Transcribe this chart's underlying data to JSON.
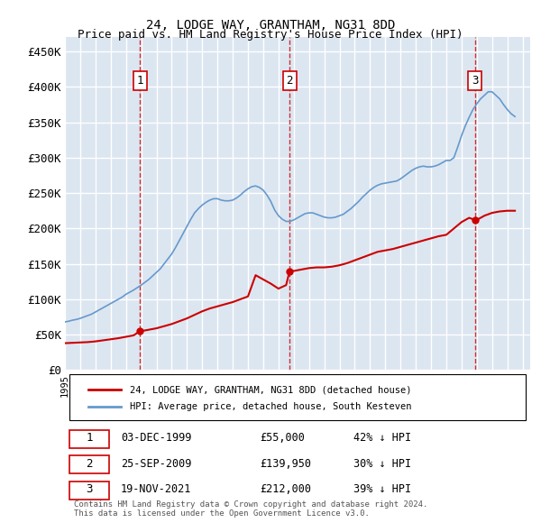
{
  "title": "24, LODGE WAY, GRANTHAM, NG31 8DD",
  "subtitle": "Price paid vs. HM Land Registry's House Price Index (HPI)",
  "ylabel_ticks": [
    "£0",
    "£50K",
    "£100K",
    "£150K",
    "£200K",
    "£250K",
    "£300K",
    "£350K",
    "£400K",
    "£450K"
  ],
  "ytick_values": [
    0,
    50000,
    100000,
    150000,
    200000,
    250000,
    300000,
    350000,
    400000,
    450000
  ],
  "ylim": [
    0,
    470000
  ],
  "xlim_start": 1995.0,
  "xlim_end": 2025.5,
  "background_color": "#dce6f1",
  "plot_bg_color": "#dce6f1",
  "grid_color": "#ffffff",
  "hpi_color": "#6699cc",
  "price_color": "#cc0000",
  "vline_color": "#cc0000",
  "marker_color": "#cc0000",
  "sale_dates": [
    1999.92,
    2009.73,
    2021.88
  ],
  "sale_prices": [
    55000,
    139950,
    212000
  ],
  "sale_labels": [
    "1",
    "2",
    "3"
  ],
  "legend_label_red": "24, LODGE WAY, GRANTHAM, NG31 8DD (detached house)",
  "legend_label_blue": "HPI: Average price, detached house, South Kesteven",
  "table_rows": [
    [
      "1",
      "03-DEC-1999",
      "£55,000",
      "42% ↓ HPI"
    ],
    [
      "2",
      "25-SEP-2009",
      "£139,950",
      "30% ↓ HPI"
    ],
    [
      "3",
      "19-NOV-2021",
      "£212,000",
      "39% ↓ HPI"
    ]
  ],
  "footer": "Contains HM Land Registry data © Crown copyright and database right 2024.\nThis data is licensed under the Open Government Licence v3.0.",
  "hpi_x": [
    1995.0,
    1995.25,
    1995.5,
    1995.75,
    1996.0,
    1996.25,
    1996.5,
    1996.75,
    1997.0,
    1997.25,
    1997.5,
    1997.75,
    1998.0,
    1998.25,
    1998.5,
    1998.75,
    1999.0,
    1999.25,
    1999.5,
    1999.75,
    2000.0,
    2000.25,
    2000.5,
    2000.75,
    2001.0,
    2001.25,
    2001.5,
    2001.75,
    2002.0,
    2002.25,
    2002.5,
    2002.75,
    2003.0,
    2003.25,
    2003.5,
    2003.75,
    2004.0,
    2004.25,
    2004.5,
    2004.75,
    2005.0,
    2005.25,
    2005.5,
    2005.75,
    2006.0,
    2006.25,
    2006.5,
    2006.75,
    2007.0,
    2007.25,
    2007.5,
    2007.75,
    2008.0,
    2008.25,
    2008.5,
    2008.75,
    2009.0,
    2009.25,
    2009.5,
    2009.75,
    2010.0,
    2010.25,
    2010.5,
    2010.75,
    2011.0,
    2011.25,
    2011.5,
    2011.75,
    2012.0,
    2012.25,
    2012.5,
    2012.75,
    2013.0,
    2013.25,
    2013.5,
    2013.75,
    2014.0,
    2014.25,
    2014.5,
    2014.75,
    2015.0,
    2015.25,
    2015.5,
    2015.75,
    2016.0,
    2016.25,
    2016.5,
    2016.75,
    2017.0,
    2017.25,
    2017.5,
    2017.75,
    2018.0,
    2018.25,
    2018.5,
    2018.75,
    2019.0,
    2019.25,
    2019.5,
    2019.75,
    2020.0,
    2020.25,
    2020.5,
    2020.75,
    2021.0,
    2021.25,
    2021.5,
    2021.75,
    2022.0,
    2022.25,
    2022.5,
    2022.75,
    2023.0,
    2023.25,
    2023.5,
    2023.75,
    2024.0,
    2024.25,
    2024.5
  ],
  "hpi_y": [
    68000,
    69000,
    70500,
    71500,
    73000,
    75000,
    77000,
    79000,
    82000,
    85000,
    88000,
    91000,
    94000,
    97000,
    100000,
    103000,
    107000,
    110000,
    113000,
    116500,
    120000,
    124000,
    128000,
    133000,
    138000,
    143000,
    150000,
    157000,
    164000,
    173000,
    183000,
    193000,
    203000,
    213000,
    222000,
    228000,
    233000,
    237000,
    240000,
    242000,
    242000,
    240000,
    239000,
    239000,
    240000,
    243000,
    247000,
    252000,
    256000,
    259000,
    260000,
    258000,
    254000,
    247000,
    238000,
    226000,
    218000,
    213000,
    210000,
    210000,
    212000,
    215000,
    218000,
    221000,
    222000,
    222000,
    220000,
    218000,
    216000,
    215000,
    215000,
    216000,
    218000,
    220000,
    224000,
    228000,
    233000,
    238000,
    244000,
    249000,
    254000,
    258000,
    261000,
    263000,
    264000,
    265000,
    266000,
    267000,
    270000,
    274000,
    278000,
    282000,
    285000,
    287000,
    288000,
    287000,
    287000,
    288000,
    290000,
    293000,
    296000,
    296000,
    300000,
    315000,
    331000,
    345000,
    357000,
    368000,
    376000,
    383000,
    388000,
    393000,
    393000,
    388000,
    383000,
    375000,
    368000,
    362000,
    358000
  ],
  "price_x": [
    1995.0,
    1995.5,
    1996.0,
    1996.5,
    1997.0,
    1997.5,
    1998.0,
    1998.5,
    1999.0,
    1999.5,
    1999.92,
    2000.0,
    2000.5,
    2001.0,
    2001.5,
    2002.0,
    2002.5,
    2003.0,
    2003.5,
    2004.0,
    2004.5,
    2005.0,
    2005.5,
    2006.0,
    2006.5,
    2007.0,
    2007.5,
    2008.0,
    2008.5,
    2009.0,
    2009.5,
    2009.73,
    2010.0,
    2010.5,
    2011.0,
    2011.5,
    2012.0,
    2012.5,
    2013.0,
    2013.5,
    2014.0,
    2014.5,
    2015.0,
    2015.5,
    2016.0,
    2016.5,
    2017.0,
    2017.5,
    2018.0,
    2018.5,
    2019.0,
    2019.5,
    2020.0,
    2020.5,
    2021.0,
    2021.5,
    2021.88,
    2022.0,
    2022.5,
    2023.0,
    2023.5,
    2024.0,
    2024.5
  ],
  "price_y": [
    38000,
    38500,
    39000,
    39500,
    40500,
    42000,
    43500,
    45000,
    47000,
    49000,
    55000,
    55000,
    57000,
    59000,
    62000,
    65000,
    69000,
    73000,
    78000,
    83000,
    87000,
    90000,
    93000,
    96000,
    100000,
    104000,
    134000,
    128000,
    122000,
    115000,
    120000,
    139950,
    139950,
    142000,
    144000,
    145000,
    145000,
    146000,
    148000,
    151000,
    155000,
    159000,
    163000,
    167000,
    169000,
    171000,
    174000,
    177000,
    180000,
    183000,
    186000,
    189000,
    191000,
    200000,
    209000,
    215000,
    212000,
    212000,
    218000,
    222000,
    224000,
    225000,
    225000
  ]
}
